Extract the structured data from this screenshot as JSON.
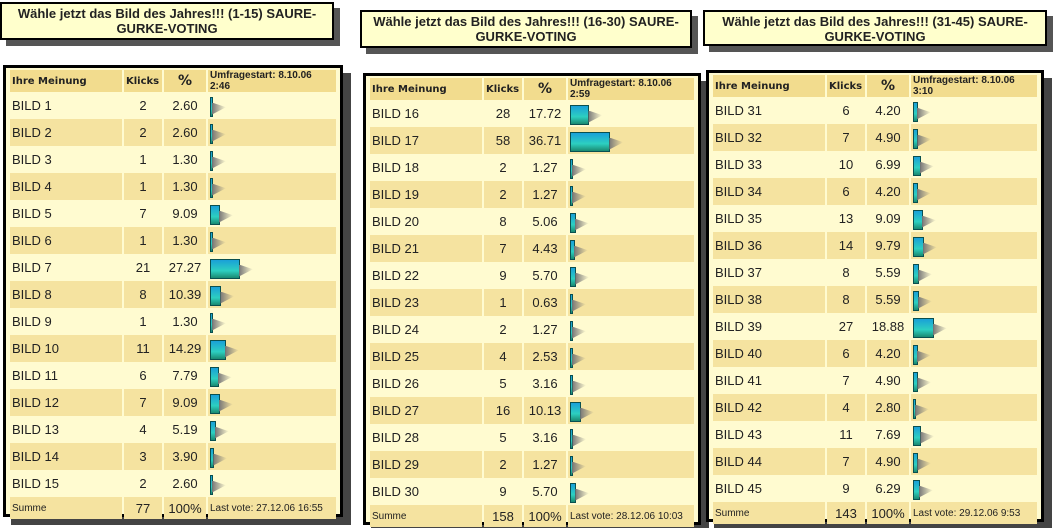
{
  "panels": [
    {
      "title": "Wähle jetzt das Bild des Jahres!!! (1-15) SAURE-GURKE-VOTING",
      "headers": {
        "name": "Ihre Meinung",
        "clicks": "Klicks",
        "pct": "%",
        "start": "Umfragestart: 8.10.06 2:46"
      },
      "rows": [
        {
          "name": "BILD 1",
          "clicks": "2",
          "pct": "2.60"
        },
        {
          "name": "BILD 2",
          "clicks": "2",
          "pct": "2.60"
        },
        {
          "name": "BILD 3",
          "clicks": "1",
          "pct": "1.30"
        },
        {
          "name": "BILD 4",
          "clicks": "1",
          "pct": "1.30"
        },
        {
          "name": "BILD 5",
          "clicks": "7",
          "pct": "9.09"
        },
        {
          "name": "BILD 6",
          "clicks": "1",
          "pct": "1.30"
        },
        {
          "name": "BILD 7",
          "clicks": "21",
          "pct": "27.27"
        },
        {
          "name": "BILD 8",
          "clicks": "8",
          "pct": "10.39"
        },
        {
          "name": "BILD 9",
          "clicks": "1",
          "pct": "1.30"
        },
        {
          "name": "BILD 10",
          "clicks": "11",
          "pct": "14.29"
        },
        {
          "name": "BILD 11",
          "clicks": "6",
          "pct": "7.79"
        },
        {
          "name": "BILD 12",
          "clicks": "7",
          "pct": "9.09"
        },
        {
          "name": "BILD 13",
          "clicks": "4",
          "pct": "5.19"
        },
        {
          "name": "BILD 14",
          "clicks": "3",
          "pct": "3.90"
        },
        {
          "name": "BILD 15",
          "clicks": "2",
          "pct": "2.60"
        }
      ],
      "footer": {
        "label": "Summe",
        "clicks": "77",
        "pct": "100%",
        "last_vote": "Last vote: 27.12.06 16:55"
      }
    },
    {
      "title": "Wähle jetzt das Bild des Jahres!!! (16-30) SAURE-GURKE-VOTING",
      "headers": {
        "name": "Ihre Meinung",
        "clicks": "Klicks",
        "pct": "%",
        "start": "Umfragestart: 8.10.06 2:59"
      },
      "rows": [
        {
          "name": "BILD 16",
          "clicks": "28",
          "pct": "17.72"
        },
        {
          "name": "BILD 17",
          "clicks": "58",
          "pct": "36.71"
        },
        {
          "name": "BILD 18",
          "clicks": "2",
          "pct": "1.27"
        },
        {
          "name": "BILD 19",
          "clicks": "2",
          "pct": "1.27"
        },
        {
          "name": "BILD 20",
          "clicks": "8",
          "pct": "5.06"
        },
        {
          "name": "BILD 21",
          "clicks": "7",
          "pct": "4.43"
        },
        {
          "name": "BILD 22",
          "clicks": "9",
          "pct": "5.70"
        },
        {
          "name": "BILD 23",
          "clicks": "1",
          "pct": "0.63"
        },
        {
          "name": "BILD 24",
          "clicks": "2",
          "pct": "1.27"
        },
        {
          "name": "BILD 25",
          "clicks": "4",
          "pct": "2.53"
        },
        {
          "name": "BILD 26",
          "clicks": "5",
          "pct": "3.16"
        },
        {
          "name": "BILD 27",
          "clicks": "16",
          "pct": "10.13"
        },
        {
          "name": "BILD 28",
          "clicks": "5",
          "pct": "3.16"
        },
        {
          "name": "BILD 29",
          "clicks": "2",
          "pct": "1.27"
        },
        {
          "name": "BILD 30",
          "clicks": "9",
          "pct": "5.70"
        }
      ],
      "footer": {
        "label": "Summe",
        "clicks": "158",
        "pct": "100%",
        "last_vote": "Last vote: 28.12.06 10:03"
      }
    },
    {
      "title": "Wähle jetzt das Bild des Jahres!!! (31-45) SAURE-GURKE-VOTING",
      "headers": {
        "name": "Ihre Meinung",
        "clicks": "Klicks",
        "pct": "%",
        "start": "Umfragestart: 8.10.06 3:10"
      },
      "rows": [
        {
          "name": "BILD 31",
          "clicks": "6",
          "pct": "4.20"
        },
        {
          "name": "BILD 32",
          "clicks": "7",
          "pct": "4.90"
        },
        {
          "name": "BILD 33",
          "clicks": "10",
          "pct": "6.99"
        },
        {
          "name": "BILD 34",
          "clicks": "6",
          "pct": "4.20"
        },
        {
          "name": "BILD 35",
          "clicks": "13",
          "pct": "9.09"
        },
        {
          "name": "BILD 36",
          "clicks": "14",
          "pct": "9.79"
        },
        {
          "name": "BILD 37",
          "clicks": "8",
          "pct": "5.59"
        },
        {
          "name": "BILD 38",
          "clicks": "8",
          "pct": "5.59"
        },
        {
          "name": "BILD 39",
          "clicks": "27",
          "pct": "18.88"
        },
        {
          "name": "BILD 40",
          "clicks": "6",
          "pct": "4.20"
        },
        {
          "name": "BILD 41",
          "clicks": "7",
          "pct": "4.90"
        },
        {
          "name": "BILD 42",
          "clicks": "4",
          "pct": "2.80"
        },
        {
          "name": "BILD 43",
          "clicks": "11",
          "pct": "7.69"
        },
        {
          "name": "BILD 44",
          "clicks": "7",
          "pct": "4.90"
        },
        {
          "name": "BILD 45",
          "clicks": "9",
          "pct": "6.29"
        }
      ],
      "footer": {
        "label": "Summe",
        "clicks": "143",
        "pct": "100%",
        "last_vote": "Last vote: 29.12.06 9:53"
      }
    }
  ]
}
